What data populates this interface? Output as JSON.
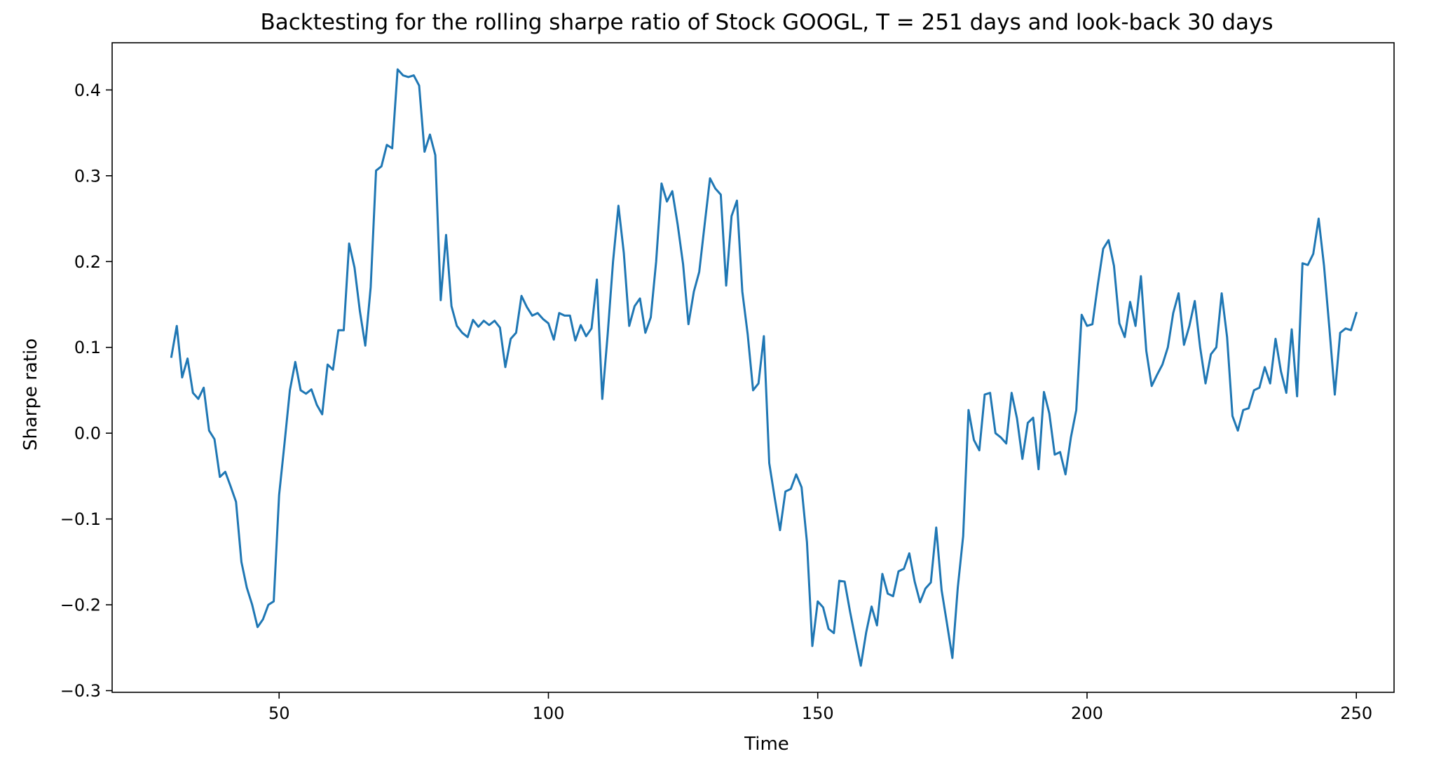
{
  "chart_data": {
    "type": "line",
    "title": "Backtesting for the rolling sharpe ratio of Stock GOOGL, T = 251 days and look-back 30 days",
    "xlabel": "Time",
    "ylabel": "Sharpe ratio",
    "xlim": [
      19,
      257
    ],
    "ylim": [
      -0.302,
      0.455
    ],
    "x_ticks": [
      50,
      100,
      150,
      200,
      250
    ],
    "x_tick_labels": [
      "50",
      "100",
      "150",
      "200",
      "250"
    ],
    "y_ticks": [
      -0.3,
      -0.2,
      -0.1,
      0.0,
      0.1,
      0.2,
      0.3,
      0.4
    ],
    "y_tick_labels": [
      "−0.3",
      "−0.2",
      "−0.1",
      "0.0",
      "0.1",
      "0.2",
      "0.3",
      "0.4"
    ],
    "grid": false,
    "line_color": "#1f77b4",
    "series": [
      {
        "x_start": 30,
        "x_step": 1,
        "values": [
          0.089,
          0.125,
          0.065,
          0.087,
          0.047,
          0.04,
          0.053,
          0.003,
          -0.007,
          -0.051,
          -0.045,
          -0.062,
          -0.08,
          -0.15,
          -0.18,
          -0.2,
          -0.226,
          -0.217,
          -0.2,
          -0.196,
          -0.072,
          -0.012,
          0.05,
          0.083,
          0.05,
          0.046,
          0.051,
          0.033,
          0.022,
          0.08,
          0.074,
          0.12,
          0.12,
          0.221,
          0.193,
          0.142,
          0.102,
          0.17,
          0.306,
          0.311,
          0.336,
          0.332,
          0.424,
          0.417,
          0.415,
          0.417,
          0.405,
          0.328,
          0.348,
          0.324,
          0.155,
          0.231,
          0.148,
          0.125,
          0.117,
          0.112,
          0.132,
          0.124,
          0.131,
          0.126,
          0.131,
          0.123,
          0.077,
          0.11,
          0.117,
          0.16,
          0.147,
          0.137,
          0.14,
          0.133,
          0.128,
          0.109,
          0.14,
          0.137,
          0.137,
          0.108,
          0.126,
          0.113,
          0.122,
          0.179,
          0.04,
          0.115,
          0.2,
          0.265,
          0.21,
          0.125,
          0.148,
          0.157,
          0.117,
          0.135,
          0.2,
          0.291,
          0.27,
          0.282,
          0.243,
          0.197,
          0.127,
          0.165,
          0.188,
          0.243,
          0.297,
          0.285,
          0.278,
          0.172,
          0.253,
          0.271,
          0.165,
          0.115,
          0.05,
          0.058,
          0.113,
          -0.035,
          -0.075,
          -0.113,
          -0.068,
          -0.065,
          -0.048,
          -0.063,
          -0.127,
          -0.248,
          -0.196,
          -0.203,
          -0.228,
          -0.233,
          -0.172,
          -0.173,
          -0.208,
          -0.24,
          -0.271,
          -0.232,
          -0.202,
          -0.224,
          -0.164,
          -0.187,
          -0.19,
          -0.161,
          -0.158,
          -0.14,
          -0.173,
          -0.197,
          -0.181,
          -0.174,
          -0.11,
          -0.183,
          -0.222,
          -0.262,
          -0.18,
          -0.12,
          0.027,
          -0.008,
          -0.02,
          0.045,
          0.047,
          0.0,
          -0.005,
          -0.012,
          0.047,
          0.017,
          -0.03,
          0.012,
          0.018,
          -0.042,
          0.048,
          0.023,
          -0.025,
          -0.022,
          -0.048,
          -0.005,
          0.027,
          0.138,
          0.125,
          0.127,
          0.173,
          0.215,
          0.225,
          0.195,
          0.128,
          0.112,
          0.153,
          0.125,
          0.183,
          0.096,
          0.055,
          0.068,
          0.08,
          0.1,
          0.14,
          0.163,
          0.103,
          0.125,
          0.154,
          0.1,
          0.058,
          0.092,
          0.1,
          0.163,
          0.112,
          0.02,
          0.003,
          0.027,
          0.029,
          0.05,
          0.053,
          0.077,
          0.058,
          0.11,
          0.072,
          0.047,
          0.121,
          0.043,
          0.198,
          0.196,
          0.209,
          0.25,
          0.195,
          0.122,
          0.045,
          0.117,
          0.122,
          0.12,
          0.14
        ]
      }
    ]
  }
}
